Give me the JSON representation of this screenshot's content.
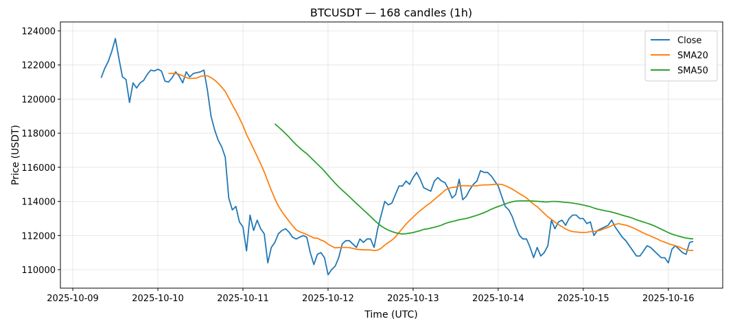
{
  "chart_data": {
    "type": "line",
    "title": "BTCUSDT — 168 candles (1h)",
    "xlabel": "Time (UTC)",
    "ylabel": "Price (USDT)",
    "start": "2025-10-09T08:00",
    "interval_hours": 1,
    "xlim": [
      "2025-10-08T20:30",
      "2025-10-16T15:20"
    ],
    "ylim": [
      108915,
      124523
    ],
    "xticks": [
      "2025-10-09",
      "2025-10-10",
      "2025-10-11",
      "2025-10-12",
      "2025-10-13",
      "2025-10-14",
      "2025-10-15",
      "2025-10-16"
    ],
    "yticks": [
      110000,
      112000,
      114000,
      116000,
      118000,
      120000,
      122000,
      124000
    ],
    "grid": true,
    "legend": "top-right",
    "series": [
      {
        "name": "Close",
        "color": "#1f77b4",
        "values": [
          121250,
          121800,
          122200,
          122800,
          123550,
          122400,
          121300,
          121150,
          119800,
          120950,
          120650,
          120950,
          121100,
          121450,
          121700,
          121650,
          121750,
          121650,
          121050,
          121000,
          121250,
          121600,
          121350,
          120950,
          121600,
          121300,
          121500,
          121550,
          121600,
          121700,
          120500,
          119000,
          118200,
          117600,
          117200,
          116600,
          114200,
          113500,
          113700,
          112800,
          112500,
          111100,
          113200,
          112300,
          112900,
          112400,
          112100,
          110400,
          111300,
          111600,
          112100,
          112300,
          112400,
          112200,
          111900,
          111800,
          111900,
          112000,
          111900,
          111000,
          110300,
          110900,
          111000,
          110700,
          109700,
          110000,
          110200,
          110700,
          111500,
          111700,
          111700,
          111500,
          111300,
          111800,
          111600,
          111800,
          111800,
          111300,
          112400,
          113200,
          114000,
          113800,
          113900,
          114400,
          114900,
          114900,
          115200,
          115000,
          115400,
          115700,
          115300,
          114800,
          114700,
          114600,
          115200,
          115400,
          115200,
          115100,
          114700,
          114200,
          114400,
          115300,
          114100,
          114300,
          114700,
          115000,
          115200,
          115800,
          115700,
          115700,
          115500,
          115200,
          114900,
          114300,
          113700,
          113500,
          113100,
          112500,
          112000,
          111800,
          111800,
          111300,
          110700,
          111300,
          110800,
          111000,
          111400,
          112900,
          112400,
          112800,
          112900,
          112600,
          113000,
          113200,
          113200,
          113000,
          113000,
          112700,
          112800,
          112000,
          112300,
          112400,
          112500,
          112600,
          112900,
          112500,
          112200,
          111900,
          111700,
          111400,
          111100,
          110800,
          110800,
          111100,
          111400,
          111300,
          111100,
          110900,
          110700,
          110700,
          110400,
          111200,
          111400,
          111200,
          111000,
          110900,
          111600,
          111650
        ]
      },
      {
        "name": "SMA20",
        "color": "#ff7f0e",
        "window": 20
      },
      {
        "name": "SMA50",
        "color": "#2ca02c",
        "window": 50
      }
    ]
  }
}
